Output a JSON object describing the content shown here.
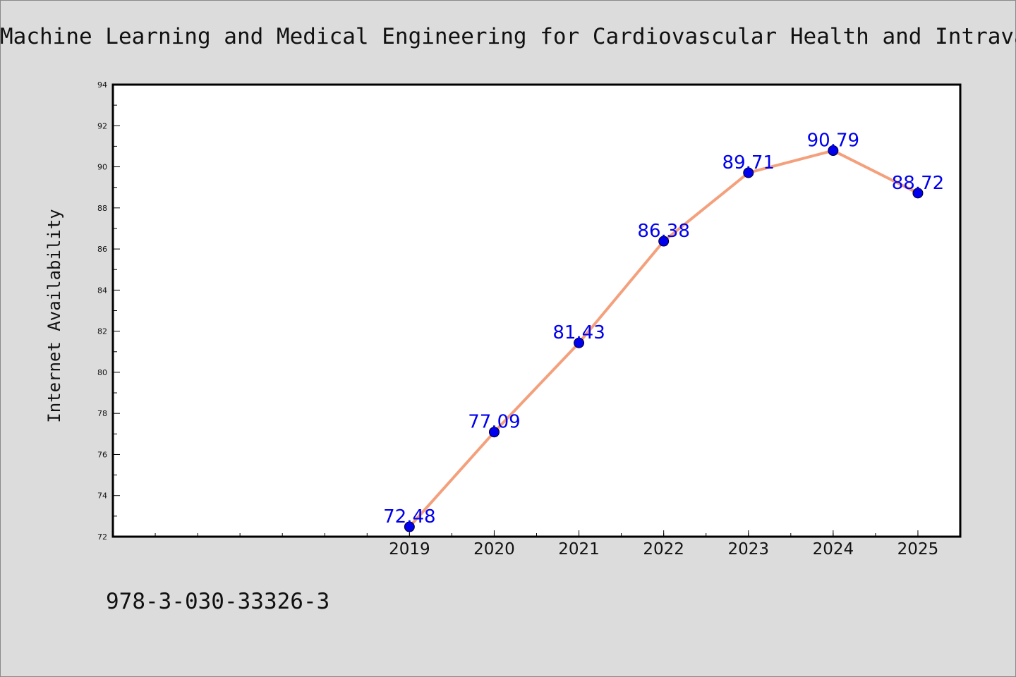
{
  "title": "Machine Learning and Medical Engineering for Cardiovascular Health and Intravascular Imaging and Computer Assisted Stenting",
  "footer_text": "978-3-030-33326-3",
  "colors": {
    "line": "#f4a07c",
    "marker": "#0000ee",
    "data_label": "#0000ee",
    "plot_bg": "#ffffff",
    "page_bg": "#dcdcdc"
  },
  "chart_data": {
    "type": "line",
    "title": "Machine Learning and Medical Engineering for Cardiovascular Health and Intravascular Imaging and Computer Assisted Stenting",
    "xlabel": "",
    "ylabel": "Internet Availability",
    "x": [
      "2019",
      "2020",
      "2021",
      "2022",
      "2023",
      "2024",
      "2025"
    ],
    "x_numeric": [
      2019,
      2020,
      2021,
      2022,
      2023,
      2024,
      2025
    ],
    "xlim": [
      2015.5,
      2025.5
    ],
    "series": [
      {
        "values": [
          72.48,
          77.09,
          81.43,
          86.38,
          89.71,
          90.79,
          88.72
        ]
      }
    ],
    "data_labels": [
      "72.48",
      "77.09",
      "81.43",
      "86.38",
      "89.71",
      "90.79",
      "88.72"
    ],
    "ylim": [
      72,
      94
    ],
    "y_ticks": [
      "72",
      "74",
      "76",
      "78",
      "80",
      "82",
      "84",
      "86",
      "88",
      "90",
      "92",
      "94"
    ],
    "grid": false,
    "legend": "none"
  }
}
